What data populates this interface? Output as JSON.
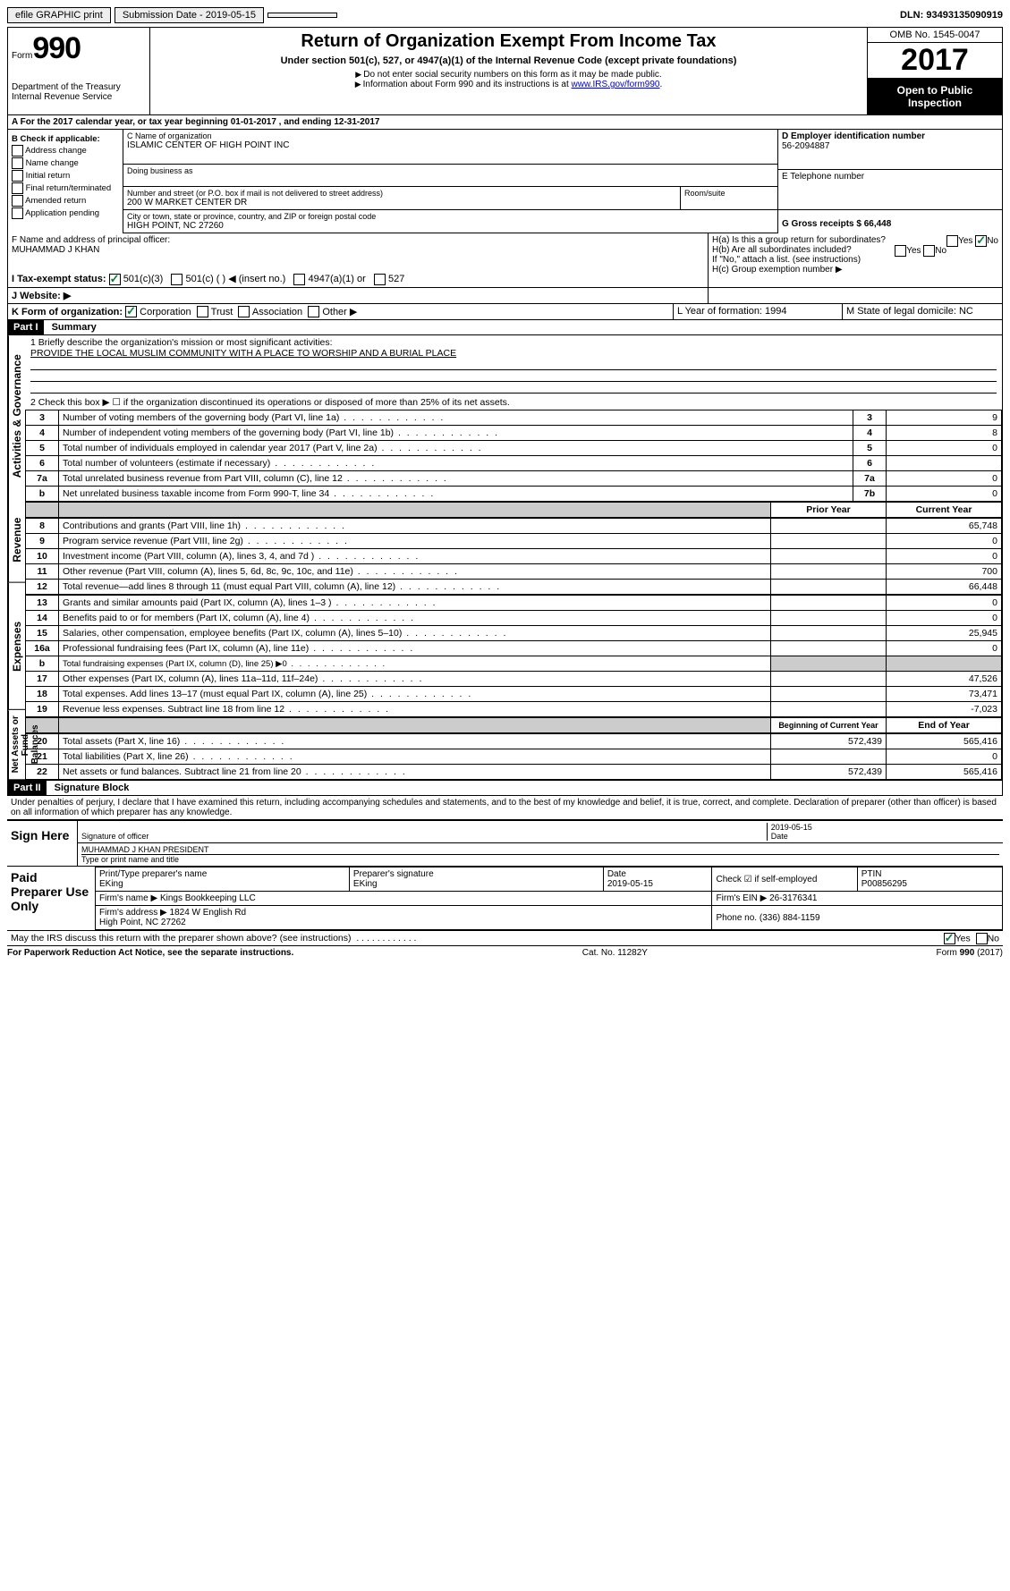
{
  "topbar": {
    "efile_label": "efile GRAPHIC print",
    "submission_label": "Submission Date - 2019-05-15",
    "dln_label": "DLN: 93493135090919"
  },
  "header": {
    "form_word": "Form",
    "form_num": "990",
    "dept": "Department of the Treasury\nInternal Revenue Service",
    "title": "Return of Organization Exempt From Income Tax",
    "subtitle": "Under section 501(c), 527, or 4947(a)(1) of the Internal Revenue Code (except private foundations)",
    "note1": "Do not enter social security numbers on this form as it may be made public.",
    "note2": "Information about Form 990 and its instructions is at ",
    "link": "www.IRS.gov/form990",
    "omb": "OMB No. 1545-0047",
    "year": "2017",
    "open": "Open to Public Inspection"
  },
  "rowA": "A For the 2017 calendar year, or tax year beginning 01-01-2017   , and ending 12-31-2017",
  "boxB": {
    "header": "B Check if applicable:",
    "items": [
      "Address change",
      "Name change",
      "Initial return",
      "Final return/terminated",
      "Amended return",
      "Application pending"
    ]
  },
  "boxC": {
    "name_label": "C Name of organization",
    "name": "ISLAMIC CENTER OF HIGH POINT INC",
    "dba_label": "Doing business as",
    "street_label": "Number and street (or P.O. box if mail is not delivered to street address)",
    "room_label": "Room/suite",
    "street": "200 W MARKET CENTER DR",
    "city_label": "City or town, state or province, country, and ZIP or foreign postal code",
    "city": "HIGH POINT, NC  27260"
  },
  "boxD": {
    "label": "D Employer identification number",
    "value": "56-2094887"
  },
  "boxE": {
    "label": "E Telephone number",
    "value": ""
  },
  "boxG": {
    "label": "G Gross receipts $ 66,448"
  },
  "boxF": {
    "label": "F  Name and address of principal officer:",
    "value": "MUHAMMAD J KHAN"
  },
  "boxH": {
    "a": "H(a)  Is this a group return for subordinates?",
    "b": "H(b)  Are all subordinates included?",
    "b_note": "If \"No,\" attach a list. (see instructions)",
    "c": "H(c)  Group exemption number ▶",
    "yes": "Yes",
    "no": "No"
  },
  "boxI": {
    "label": "I   Tax-exempt status:",
    "opts": [
      "501(c)(3)",
      "501(c) (  ) ◀ (insert no.)",
      "4947(a)(1) or",
      "527"
    ]
  },
  "boxJ": "J   Website: ▶",
  "boxK": {
    "label": "K Form of organization:",
    "opts": [
      "Corporation",
      "Trust",
      "Association",
      "Other ▶"
    ]
  },
  "boxL": "L Year of formation: 1994",
  "boxM": "M State of legal domicile: NC",
  "part1": {
    "header": "Part I",
    "title": "Summary",
    "mission_label": "1  Briefly describe the organization's mission or most significant activities:",
    "mission": "PROVIDE THE LOCAL MUSLIM COMMUNITY WITH A PLACE TO WORSHIP AND A BURIAL PLACE",
    "sections": {
      "gov_label": "Activities & Governance",
      "rev_label": "Revenue",
      "exp_label": "Expenses",
      "net_label": "Net Assets or Fund Balances"
    },
    "line2": "2   Check this box ▶ ☐  if the organization discontinued its operations or disposed of more than 25% of its net assets.",
    "rows_gov": [
      {
        "n": "3",
        "t": "Number of voting members of the governing body (Part VI, line 1a)",
        "box": "3",
        "v": "9"
      },
      {
        "n": "4",
        "t": "Number of independent voting members of the governing body (Part VI, line 1b)",
        "box": "4",
        "v": "8"
      },
      {
        "n": "5",
        "t": "Total number of individuals employed in calendar year 2017 (Part V, line 2a)",
        "box": "5",
        "v": "0"
      },
      {
        "n": "6",
        "t": "Total number of volunteers (estimate if necessary)",
        "box": "6",
        "v": ""
      },
      {
        "n": "7a",
        "t": "Total unrelated business revenue from Part VIII, column (C), line 12",
        "box": "7a",
        "v": "0"
      },
      {
        "n": "b",
        "t": "Net unrelated business taxable income from Form 990-T, line 34",
        "box": "7b",
        "v": "0"
      }
    ],
    "col_headers": {
      "prior": "Prior Year",
      "current": "Current Year",
      "begin": "Beginning of Current Year",
      "end": "End of Year"
    },
    "rows_rev": [
      {
        "n": "8",
        "t": "Contributions and grants (Part VIII, line 1h)",
        "p": "",
        "c": "65,748"
      },
      {
        "n": "9",
        "t": "Program service revenue (Part VIII, line 2g)",
        "p": "",
        "c": "0"
      },
      {
        "n": "10",
        "t": "Investment income (Part VIII, column (A), lines 3, 4, and 7d )",
        "p": "",
        "c": "0"
      },
      {
        "n": "11",
        "t": "Other revenue (Part VIII, column (A), lines 5, 6d, 8c, 9c, 10c, and 11e)",
        "p": "",
        "c": "700"
      },
      {
        "n": "12",
        "t": "Total revenue—add lines 8 through 11 (must equal Part VIII, column (A), line 12)",
        "p": "",
        "c": "66,448"
      }
    ],
    "rows_exp": [
      {
        "n": "13",
        "t": "Grants and similar amounts paid (Part IX, column (A), lines 1–3 )",
        "p": "",
        "c": "0"
      },
      {
        "n": "14",
        "t": "Benefits paid to or for members (Part IX, column (A), line 4)",
        "p": "",
        "c": "0"
      },
      {
        "n": "15",
        "t": "Salaries, other compensation, employee benefits (Part IX, column (A), lines 5–10)",
        "p": "",
        "c": "25,945"
      },
      {
        "n": "16a",
        "t": "Professional fundraising fees (Part IX, column (A), line 11e)",
        "p": "",
        "c": "0"
      },
      {
        "n": "b",
        "t": "Total fundraising expenses (Part IX, column (D), line 25) ▶0",
        "p": "grey",
        "c": "grey",
        "small": true
      },
      {
        "n": "17",
        "t": "Other expenses (Part IX, column (A), lines 11a–11d, 11f–24e)",
        "p": "",
        "c": "47,526"
      },
      {
        "n": "18",
        "t": "Total expenses. Add lines 13–17 (must equal Part IX, column (A), line 25)",
        "p": "",
        "c": "73,471"
      },
      {
        "n": "19",
        "t": "Revenue less expenses. Subtract line 18 from line 12",
        "p": "",
        "c": "-7,023"
      }
    ],
    "rows_net": [
      {
        "n": "20",
        "t": "Total assets (Part X, line 16)",
        "p": "572,439",
        "c": "565,416"
      },
      {
        "n": "21",
        "t": "Total liabilities (Part X, line 26)",
        "p": "",
        "c": "0"
      },
      {
        "n": "22",
        "t": "Net assets or fund balances. Subtract line 21 from line 20",
        "p": "572,439",
        "c": "565,416"
      }
    ]
  },
  "part2": {
    "header": "Part II",
    "title": "Signature Block",
    "penalty": "Under penalties of perjury, I declare that I have examined this return, including accompanying schedules and statements, and to the best of my knowledge and belief, it is true, correct, and complete. Declaration of preparer (other than officer) is based on all information of which preparer has any knowledge.",
    "sign_here": "Sign Here",
    "sig_officer": "Signature of officer",
    "sig_date": "2019-05-15",
    "date_label": "Date",
    "officer_name": "MUHAMMAD J KHAN PRESIDENT",
    "type_name": "Type or print name and title",
    "paid": "Paid Preparer Use Only",
    "prep_name_label": "Print/Type preparer's name",
    "prep_name": "EKing",
    "prep_sig_label": "Preparer's signature",
    "prep_sig": "EKing",
    "prep_date": "2019-05-15",
    "self_emp": "Check ☑ if self-employed",
    "ptin_label": "PTIN",
    "ptin": "P00856295",
    "firm_name_label": "Firm's name    ▶",
    "firm_name": "Kings Bookkeeping LLC",
    "firm_ein_label": "Firm's EIN ▶",
    "firm_ein": "26-3176341",
    "firm_addr_label": "Firm's address ▶",
    "firm_addr": "1824 W English Rd\nHigh Point, NC  27262",
    "phone_label": "Phone no.",
    "phone": "(336) 884-1159",
    "discuss": "May the IRS discuss this return with the preparer shown above? (see instructions)",
    "yes": "Yes",
    "no": "No"
  },
  "footer": {
    "left": "For Paperwork Reduction Act Notice, see the separate instructions.",
    "mid": "Cat. No. 11282Y",
    "right": "Form 990 (2017)"
  }
}
